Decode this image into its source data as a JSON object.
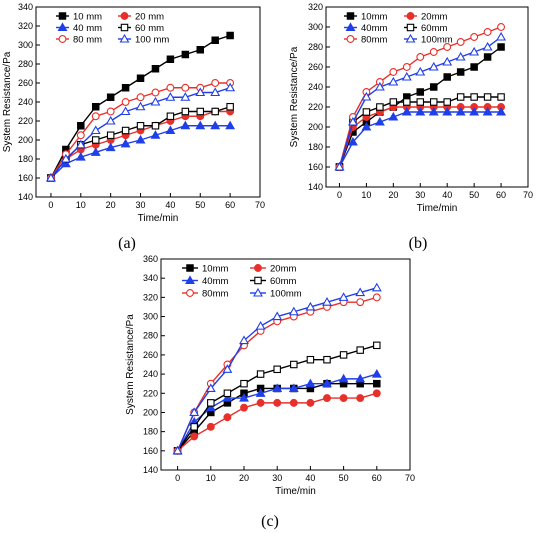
{
  "chart_data": [
    {
      "type": "line",
      "panel_label": "(a)",
      "xlabel": "Time/min",
      "ylabel": "System Resistance/Pa",
      "xlim": [
        -5,
        70
      ],
      "ylim": [
        140,
        340
      ],
      "xticks": [
        0,
        10,
        20,
        30,
        40,
        50,
        60,
        70
      ],
      "yticks": [
        140,
        160,
        180,
        200,
        220,
        240,
        260,
        280,
        300,
        320,
        340
      ],
      "legend_columns": 2,
      "legend_placement": "top-left",
      "x": [
        0,
        5,
        10,
        15,
        20,
        25,
        30,
        35,
        40,
        45,
        50,
        55,
        60
      ],
      "series": [
        {
          "name": "10 mm",
          "color": "#000000",
          "marker": "square-filled",
          "values": [
            160,
            190,
            215,
            235,
            245,
            255,
            265,
            275,
            285,
            290,
            295,
            305,
            310
          ]
        },
        {
          "name": "20 mm",
          "color": "#e8302a",
          "marker": "circle-filled",
          "values": [
            160,
            180,
            190,
            195,
            200,
            205,
            210,
            215,
            220,
            225,
            225,
            230,
            230
          ]
        },
        {
          "name": "40 mm",
          "color": "#1f3fe8",
          "marker": "triangle-filled",
          "values": [
            160,
            175,
            182,
            187,
            192,
            196,
            200,
            205,
            210,
            215,
            215,
            215,
            215
          ]
        },
        {
          "name": "60 mm",
          "color": "#000000",
          "marker": "square-open",
          "values": [
            160,
            180,
            195,
            200,
            205,
            210,
            215,
            215,
            225,
            230,
            230,
            230,
            235
          ]
        },
        {
          "name": "80 mm",
          "color": "#e8302a",
          "marker": "circle-open",
          "values": [
            160,
            185,
            205,
            225,
            230,
            240,
            245,
            250,
            255,
            255,
            255,
            260,
            260
          ]
        },
        {
          "name": "100 mm",
          "color": "#1f3fe8",
          "marker": "triangle-open",
          "values": [
            160,
            180,
            195,
            210,
            220,
            230,
            235,
            240,
            245,
            245,
            250,
            250,
            255
          ]
        }
      ]
    },
    {
      "type": "line",
      "panel_label": "(b)",
      "xlabel": "Time/min",
      "ylabel": "System Resistance/Pa",
      "xlim": [
        -5,
        70
      ],
      "ylim": [
        140,
        320
      ],
      "xticks": [
        0,
        10,
        20,
        30,
        40,
        50,
        60,
        70
      ],
      "yticks": [
        140,
        160,
        180,
        200,
        220,
        240,
        260,
        280,
        300,
        320
      ],
      "legend_columns": 2,
      "legend_placement": "top-left",
      "x": [
        0,
        5,
        10,
        15,
        20,
        25,
        30,
        35,
        40,
        45,
        50,
        55,
        60
      ],
      "series": [
        {
          "name": "10mm",
          "color": "#000000",
          "marker": "square-filled",
          "values": [
            160,
            195,
            205,
            215,
            220,
            230,
            235,
            240,
            250,
            255,
            260,
            270,
            280
          ]
        },
        {
          "name": "20mm",
          "color": "#e8302a",
          "marker": "circle-filled",
          "values": [
            160,
            200,
            210,
            215,
            220,
            220,
            220,
            220,
            220,
            220,
            220,
            220,
            220
          ]
        },
        {
          "name": "40mm",
          "color": "#1f3fe8",
          "marker": "triangle-filled",
          "values": [
            160,
            185,
            200,
            205,
            210,
            215,
            215,
            215,
            215,
            215,
            215,
            215,
            215
          ]
        },
        {
          "name": "60mm",
          "color": "#000000",
          "marker": "square-open",
          "values": [
            160,
            205,
            215,
            220,
            225,
            225,
            225,
            225,
            225,
            230,
            230,
            230,
            230
          ]
        },
        {
          "name": "80mm",
          "color": "#e8302a",
          "marker": "circle-open",
          "values": [
            160,
            210,
            235,
            245,
            255,
            260,
            270,
            275,
            280,
            285,
            290,
            295,
            300
          ]
        },
        {
          "name": "100mm",
          "color": "#1f3fe8",
          "marker": "triangle-open",
          "values": [
            160,
            205,
            230,
            240,
            245,
            250,
            255,
            260,
            265,
            270,
            275,
            280,
            290
          ]
        }
      ]
    },
    {
      "type": "line",
      "panel_label": "(c)",
      "xlabel": "Time/min",
      "ylabel": "System Resistance/Pa",
      "xlim": [
        -5,
        70
      ],
      "ylim": [
        140,
        360
      ],
      "xticks": [
        0,
        10,
        20,
        30,
        40,
        50,
        60,
        70
      ],
      "yticks": [
        140,
        160,
        180,
        200,
        220,
        240,
        260,
        280,
        300,
        320,
        340,
        360
      ],
      "legend_columns": 2,
      "legend_placement": "top-left",
      "x": [
        0,
        5,
        10,
        15,
        20,
        25,
        30,
        35,
        40,
        45,
        50,
        55,
        60
      ],
      "series": [
        {
          "name": "10mm",
          "color": "#000000",
          "marker": "square-filled",
          "values": [
            160,
            180,
            200,
            210,
            220,
            225,
            225,
            225,
            225,
            230,
            230,
            230,
            230
          ]
        },
        {
          "name": "20mm",
          "color": "#e8302a",
          "marker": "circle-filled",
          "values": [
            160,
            175,
            185,
            195,
            205,
            210,
            210,
            210,
            210,
            215,
            215,
            215,
            220
          ]
        },
        {
          "name": "40mm",
          "color": "#1f3fe8",
          "marker": "triangle-filled",
          "values": [
            160,
            190,
            205,
            215,
            215,
            220,
            225,
            225,
            230,
            230,
            235,
            235,
            240
          ]
        },
        {
          "name": "60mm",
          "color": "#000000",
          "marker": "square-open",
          "values": [
            160,
            185,
            210,
            220,
            230,
            240,
            245,
            250,
            255,
            255,
            260,
            265,
            270
          ]
        },
        {
          "name": "80mm",
          "color": "#e8302a",
          "marker": "circle-open",
          "values": [
            160,
            200,
            230,
            250,
            270,
            285,
            295,
            300,
            305,
            310,
            315,
            315,
            320
          ]
        },
        {
          "name": "100mm",
          "color": "#1f3fe8",
          "marker": "triangle-open",
          "values": [
            160,
            200,
            225,
            245,
            275,
            290,
            300,
            305,
            310,
            315,
            320,
            325,
            330
          ]
        }
      ]
    }
  ]
}
